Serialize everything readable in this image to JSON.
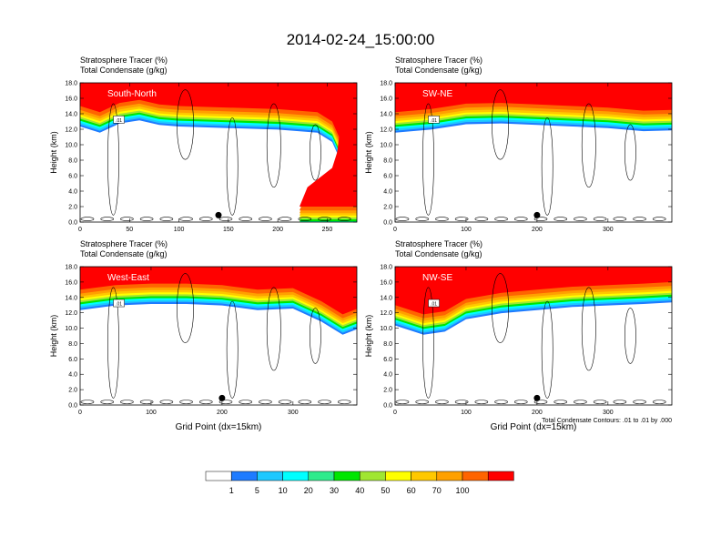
{
  "figure": {
    "title": "2014-02-24_15:00:00",
    "panel_header_line1": "Stratosphere Tracer   (%)",
    "panel_header_line2": "Total Condensate   (g/kg)",
    "ylabel": "Height (km)",
    "xlabel": "Grid Point (dx=15km)",
    "contour_note": "Total Condensate Contours: .01 to .01 by .000",
    "contour_label": ".01"
  },
  "colorbar": {
    "labels": [
      "1",
      "5",
      "10",
      "20",
      "30",
      "40",
      "50",
      "60",
      "70",
      "100"
    ],
    "colors": [
      "#ffffff",
      "#1e7bff",
      "#1ec8ff",
      "#00ffff",
      "#2eeb8c",
      "#00e600",
      "#a0e632",
      "#ffff00",
      "#ffc800",
      "#ffa000",
      "#ff6400",
      "#ff0000"
    ]
  },
  "chart_data": [
    {
      "type": "heatmap",
      "name_label": "South-North",
      "xlim": [
        0,
        280
      ],
      "xticks": [
        0,
        50,
        100,
        150,
        200,
        250
      ],
      "ylim": [
        0,
        18
      ],
      "yticks": [
        "0.0",
        "2.0",
        "4.0",
        "6.0",
        "8.0",
        "10.0",
        "12.0",
        "14.0",
        "16.0",
        "18.0"
      ],
      "tracer_base_km": [
        [
          0,
          15.0
        ],
        [
          20,
          14.2
        ],
        [
          40,
          15.4
        ],
        [
          60,
          15.8
        ],
        [
          80,
          15.2
        ],
        [
          100,
          15.0
        ],
        [
          150,
          14.8
        ],
        [
          200,
          14.6
        ],
        [
          240,
          14.2
        ],
        [
          255,
          13.0
        ],
        [
          262,
          11.0
        ],
        [
          260,
          9.0
        ],
        [
          255,
          7.0
        ],
        [
          245,
          6.0
        ],
        [
          230,
          4.5
        ],
        [
          222,
          2.0
        ]
      ],
      "location_marker": [
        140,
        0.9
      ]
    },
    {
      "type": "heatmap",
      "name_label": "SW-NE",
      "xlim": [
        0,
        390
      ],
      "xticks": [
        0,
        100,
        200,
        300
      ],
      "ylim": [
        0,
        18
      ],
      "yticks": [
        "0.0",
        "2.0",
        "4.0",
        "6.0",
        "8.0",
        "10.0",
        "12.0",
        "14.0",
        "16.0",
        "18.0"
      ],
      "tracer_base_km": [
        [
          0,
          14.2
        ],
        [
          50,
          14.6
        ],
        [
          100,
          15.3
        ],
        [
          150,
          15.4
        ],
        [
          200,
          15.2
        ],
        [
          250,
          15.0
        ],
        [
          300,
          14.8
        ],
        [
          350,
          14.4
        ],
        [
          390,
          14.5
        ]
      ],
      "location_marker": [
        200,
        0.9
      ]
    },
    {
      "type": "heatmap",
      "name_label": "West-East",
      "xlim": [
        0,
        390
      ],
      "xticks": [
        0,
        100,
        200,
        300
      ],
      "ylim": [
        0,
        18
      ],
      "yticks": [
        "0.0",
        "2.0",
        "4.0",
        "6.0",
        "8.0",
        "10.0",
        "12.0",
        "14.0",
        "16.0",
        "18.0"
      ],
      "tracer_base_km": [
        [
          0,
          15.0
        ],
        [
          50,
          15.6
        ],
        [
          100,
          15.8
        ],
        [
          150,
          15.8
        ],
        [
          200,
          15.6
        ],
        [
          250,
          15.0
        ],
        [
          300,
          15.2
        ],
        [
          340,
          13.5
        ],
        [
          370,
          11.8
        ],
        [
          390,
          12.5
        ]
      ],
      "location_marker": [
        200,
        0.9
      ]
    },
    {
      "type": "heatmap",
      "name_label": "NW-SE",
      "xlim": [
        0,
        390
      ],
      "xticks": [
        0,
        100,
        200,
        300
      ],
      "ylim": [
        0,
        18
      ],
      "yticks": [
        "0.0",
        "2.0",
        "4.0",
        "6.0",
        "8.0",
        "10.0",
        "12.0",
        "14.0",
        "16.0",
        "18.0"
      ],
      "tracer_base_km": [
        [
          0,
          13.0
        ],
        [
          40,
          11.8
        ],
        [
          70,
          12.2
        ],
        [
          100,
          13.8
        ],
        [
          150,
          14.6
        ],
        [
          200,
          15.0
        ],
        [
          250,
          15.4
        ],
        [
          300,
          15.6
        ],
        [
          350,
          15.8
        ],
        [
          390,
          16.0
        ]
      ],
      "location_marker": [
        200,
        0.9
      ]
    }
  ]
}
